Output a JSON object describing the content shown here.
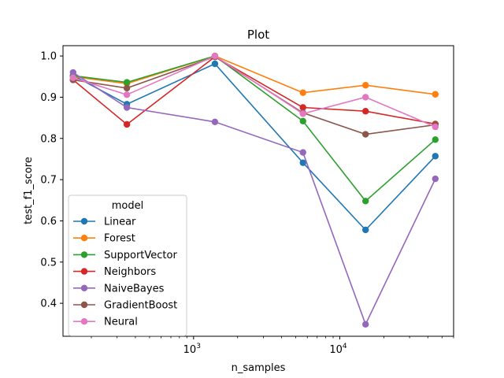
{
  "chart_data": {
    "type": "line",
    "title": "Plot",
    "xlabel": "n_samples",
    "ylabel": "test_f1_score",
    "xscale": "log",
    "xlim": [
      128,
      60000
    ],
    "ylim": [
      0.32,
      1.025
    ],
    "x": [
      150,
      350,
      1400,
      5600,
      15000,
      45000
    ],
    "x_ticks": [
      {
        "value": 1000,
        "base": "10",
        "exp": "3"
      },
      {
        "value": 10000,
        "base": "10",
        "exp": "4"
      }
    ],
    "y_ticks": [
      "0.4",
      "0.5",
      "0.6",
      "0.7",
      "0.8",
      "0.9",
      "1.0"
    ],
    "y_tick_values": [
      0.4,
      0.5,
      0.6,
      0.7,
      0.8,
      0.9,
      1.0
    ],
    "grid": false,
    "legend": {
      "title": "model",
      "position": "lower-left"
    },
    "series": [
      {
        "name": "Linear",
        "color": "#1f77b4",
        "values": [
          0.953,
          0.883,
          0.981,
          0.741,
          0.578,
          0.757
        ]
      },
      {
        "name": "Forest",
        "color": "#ff7f0e",
        "values": [
          0.95,
          0.933,
          1.0,
          0.911,
          0.929,
          0.907
        ]
      },
      {
        "name": "SupportVector",
        "color": "#2ca02c",
        "values": [
          0.952,
          0.936,
          1.0,
          0.842,
          0.648,
          0.797
        ]
      },
      {
        "name": "Neighbors",
        "color": "#d62728",
        "values": [
          0.942,
          0.834,
          0.998,
          0.875,
          0.866,
          0.835
        ]
      },
      {
        "name": "NaiveBayes",
        "color": "#9467bd",
        "values": [
          0.96,
          0.875,
          0.84,
          0.766,
          0.349,
          0.702
        ]
      },
      {
        "name": "GradientBoost",
        "color": "#8c564b",
        "values": [
          0.942,
          0.922,
          0.998,
          0.862,
          0.81,
          0.833
        ]
      },
      {
        "name": "Neural",
        "color": "#e377c2",
        "values": [
          0.947,
          0.906,
          1.0,
          0.86,
          0.9,
          0.828
        ]
      }
    ]
  }
}
